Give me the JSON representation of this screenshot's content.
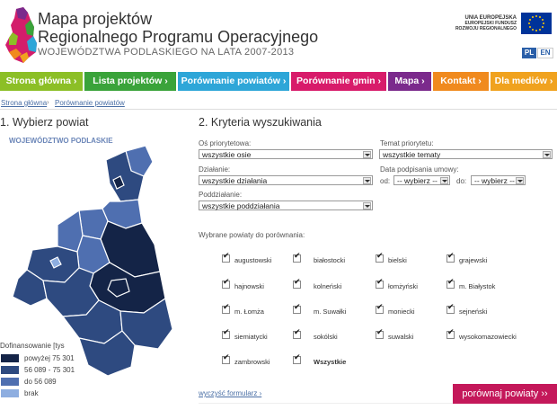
{
  "header": {
    "title_line1": "Mapa projektów",
    "title_line2": "Regionalnego Programu Operacyjnego",
    "title_line3": "WOJEWÓDZTWA PODLASKIEGO NA LATA 2007-2013",
    "eu_line1": "UNIA EUROPEJSKA",
    "eu_line2": "EUROPEJSKI FUNDUSZ",
    "eu_line3": "ROZWOJU REGIONALNEGO",
    "lang_pl": "PL",
    "lang_en": "EN"
  },
  "nav": [
    {
      "label": "Strona główna ›",
      "color": "#8cbf26"
    },
    {
      "label": "Lista projektów ›",
      "color": "#3aa33a"
    },
    {
      "label": "Porównanie powiatów ›",
      "color": "#2ea6d8"
    },
    {
      "label": "Porównanie gmin ›",
      "color": "#d81b6a"
    },
    {
      "label": "Mapa ›",
      "color": "#7b2a8c"
    },
    {
      "label": "Kontakt ›",
      "color": "#f08a1e"
    },
    {
      "label": "Dla mediów ›",
      "color": "#f0a21e"
    }
  ],
  "breadcrumb": [
    "Strona główna",
    "Porównanie powiatów"
  ],
  "section1": {
    "title": "1. Wybierz powiat",
    "region": "WOJEWÓDZTWO PODLASKIE"
  },
  "legend": {
    "title": "Dofinansowanie [tys",
    "items": [
      {
        "label": "powyżej 75 301",
        "color": "#142447"
      },
      {
        "label": "56 089 - 75 301",
        "color": "#2e4a80"
      },
      {
        "label": "do 56 089",
        "color": "#4f6fb0"
      },
      {
        "label": "brak",
        "color": "#8eaee0"
      }
    ]
  },
  "section2": {
    "title": "2. Kryteria wyszukiwania",
    "os_label": "Oś priorytetowa:",
    "os_value": "wszystkie osie",
    "temat_label": "Temat priorytetu:",
    "temat_value": "wszystkie tematy",
    "dzialanie_label": "Działanie:",
    "dzialanie_value": "wszystkie działania",
    "data_label": "Data podpisania umowy:",
    "od_label": "od:",
    "od_value": "-- wybierz --",
    "do_label": "do:",
    "do_value": "-- wybierz --",
    "poddzialanie_label": "Poddziałanie:",
    "poddzialanie_value": "wszystkie poddziałania",
    "powiaty_label": "Wybrane powiaty do porównania:",
    "powiaty": [
      "augustowski",
      "białostocki",
      "bielski",
      "grajewski",
      "hajnowski",
      "kolneński",
      "łomżyński",
      "m. Białystok",
      "m. Łomża",
      "m. Suwałki",
      "moniecki",
      "sejneński",
      "siemiatycki",
      "sokólski",
      "suwalski",
      "wysokomazowiecki",
      "zambrowski",
      "Wszystkie"
    ],
    "reset": "wyczyść formularz ›",
    "compare": "porównaj powiaty ››"
  }
}
